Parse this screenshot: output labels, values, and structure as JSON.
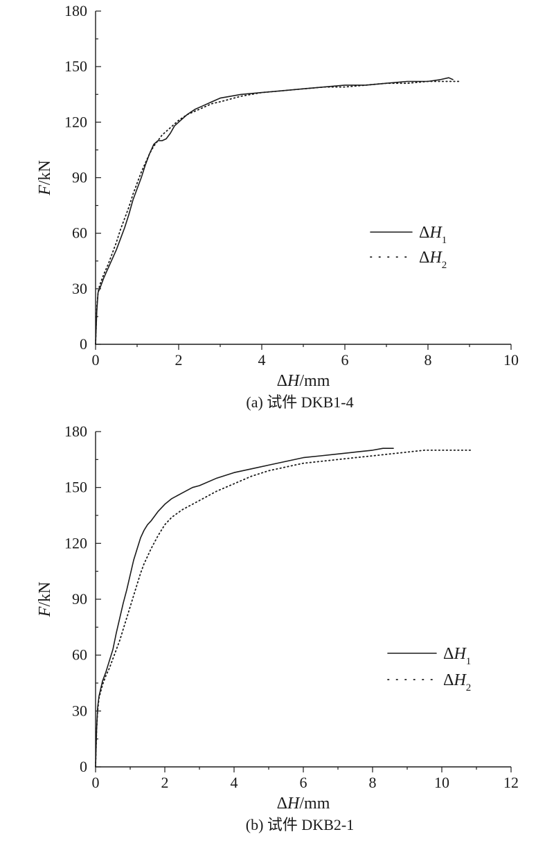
{
  "chart_data": [
    {
      "type": "line",
      "caption": "(a) 试件 DKB1-4",
      "ylabel": "F/kN",
      "xlabel": "ΔH/mm",
      "xlim": [
        0,
        10
      ],
      "ylim": [
        0,
        180
      ],
      "xticks": [
        0,
        2,
        4,
        6,
        8,
        10
      ],
      "yticks": [
        0,
        30,
        60,
        90,
        120,
        150,
        180
      ],
      "grid": false,
      "legend_position": "center-right",
      "series": [
        {
          "name": "ΔH1",
          "style": "solid",
          "x": [
            0,
            0.03,
            0.06,
            0.1,
            0.15,
            0.2,
            0.3,
            0.4,
            0.5,
            0.6,
            0.7,
            0.8,
            0.9,
            1.0,
            1.1,
            1.2,
            1.3,
            1.4,
            1.5,
            1.6,
            1.7,
            1.8,
            1.9,
            2.0,
            2.2,
            2.4,
            2.6,
            2.8,
            3.0,
            3.5,
            4.0,
            4.5,
            5.0,
            5.5,
            6.0,
            6.5,
            7.0,
            7.5,
            8.0,
            8.3,
            8.5,
            8.6
          ],
          "y": [
            0,
            18,
            28,
            30,
            33,
            36,
            41,
            46,
            51,
            57,
            63,
            70,
            78,
            84,
            90,
            97,
            103,
            108,
            110,
            110,
            111,
            114,
            118,
            120,
            124,
            127,
            129,
            131,
            133,
            135,
            136,
            137,
            138,
            139,
            140,
            140,
            141,
            142,
            142,
            143,
            144,
            143
          ]
        },
        {
          "name": "ΔH2",
          "style": "dotted",
          "x": [
            0,
            0.03,
            0.06,
            0.1,
            0.2,
            0.3,
            0.4,
            0.5,
            0.6,
            0.7,
            0.8,
            0.9,
            1.0,
            1.1,
            1.2,
            1.3,
            1.4,
            1.5,
            1.6,
            1.7,
            1.8,
            1.9,
            2.0,
            2.2,
            2.4,
            2.6,
            2.8,
            3.0,
            3.5,
            4.0,
            4.5,
            5.0,
            5.5,
            6.0,
            6.5,
            7.0,
            7.5,
            8.0,
            8.5,
            8.75
          ],
          "y": [
            0,
            20,
            28,
            32,
            38,
            43,
            49,
            55,
            62,
            68,
            74,
            81,
            87,
            93,
            98,
            103,
            107,
            110,
            113,
            115,
            117,
            119,
            121,
            124,
            126,
            128,
            130,
            131,
            134,
            136,
            137,
            138,
            139,
            139,
            140,
            141,
            141,
            142,
            142,
            142
          ]
        }
      ]
    },
    {
      "type": "line",
      "caption": "(b) 试件 DKB2-1",
      "ylabel": "F/kN",
      "xlabel": "ΔH/mm",
      "xlim": [
        0,
        12
      ],
      "ylim": [
        0,
        180
      ],
      "xticks": [
        0,
        2,
        4,
        6,
        8,
        10,
        12
      ],
      "yticks": [
        0,
        30,
        60,
        90,
        120,
        150,
        180
      ],
      "grid": false,
      "legend_position": "center-right",
      "series": [
        {
          "name": "ΔH1",
          "style": "solid",
          "x": [
            0,
            0.03,
            0.06,
            0.1,
            0.2,
            0.3,
            0.4,
            0.5,
            0.6,
            0.7,
            0.8,
            0.9,
            1.0,
            1.1,
            1.2,
            1.3,
            1.4,
            1.5,
            1.6,
            1.8,
            2.0,
            2.2,
            2.5,
            2.8,
            3.0,
            3.5,
            4.0,
            4.5,
            5.0,
            5.5,
            6.0,
            6.5,
            7.0,
            7.5,
            8.0,
            8.3,
            8.6
          ],
          "y": [
            0,
            20,
            32,
            38,
            46,
            51,
            57,
            63,
            72,
            80,
            88,
            95,
            103,
            111,
            117,
            123,
            127,
            130,
            132,
            137,
            141,
            144,
            147,
            150,
            151,
            155,
            158,
            160,
            162,
            164,
            166,
            167,
            168,
            169,
            170,
            171,
            171
          ]
        },
        {
          "name": "ΔH2",
          "style": "dotted",
          "x": [
            0,
            0.03,
            0.06,
            0.1,
            0.2,
            0.3,
            0.4,
            0.5,
            0.6,
            0.7,
            0.8,
            0.9,
            1.0,
            1.1,
            1.2,
            1.3,
            1.4,
            1.5,
            1.6,
            1.8,
            2.0,
            2.2,
            2.5,
            3.0,
            3.5,
            4.0,
            4.5,
            5.0,
            5.5,
            6.0,
            6.5,
            7.0,
            7.5,
            8.0,
            8.5,
            9.0,
            9.5,
            10.0,
            10.5,
            10.9
          ],
          "y": [
            0,
            20,
            30,
            37,
            44,
            49,
            53,
            58,
            63,
            68,
            74,
            80,
            86,
            92,
            98,
            104,
            109,
            113,
            117,
            124,
            130,
            134,
            138,
            143,
            148,
            152,
            156,
            159,
            161,
            163,
            164,
            165,
            166,
            167,
            168,
            169,
            170,
            170,
            170,
            170
          ]
        }
      ]
    }
  ]
}
